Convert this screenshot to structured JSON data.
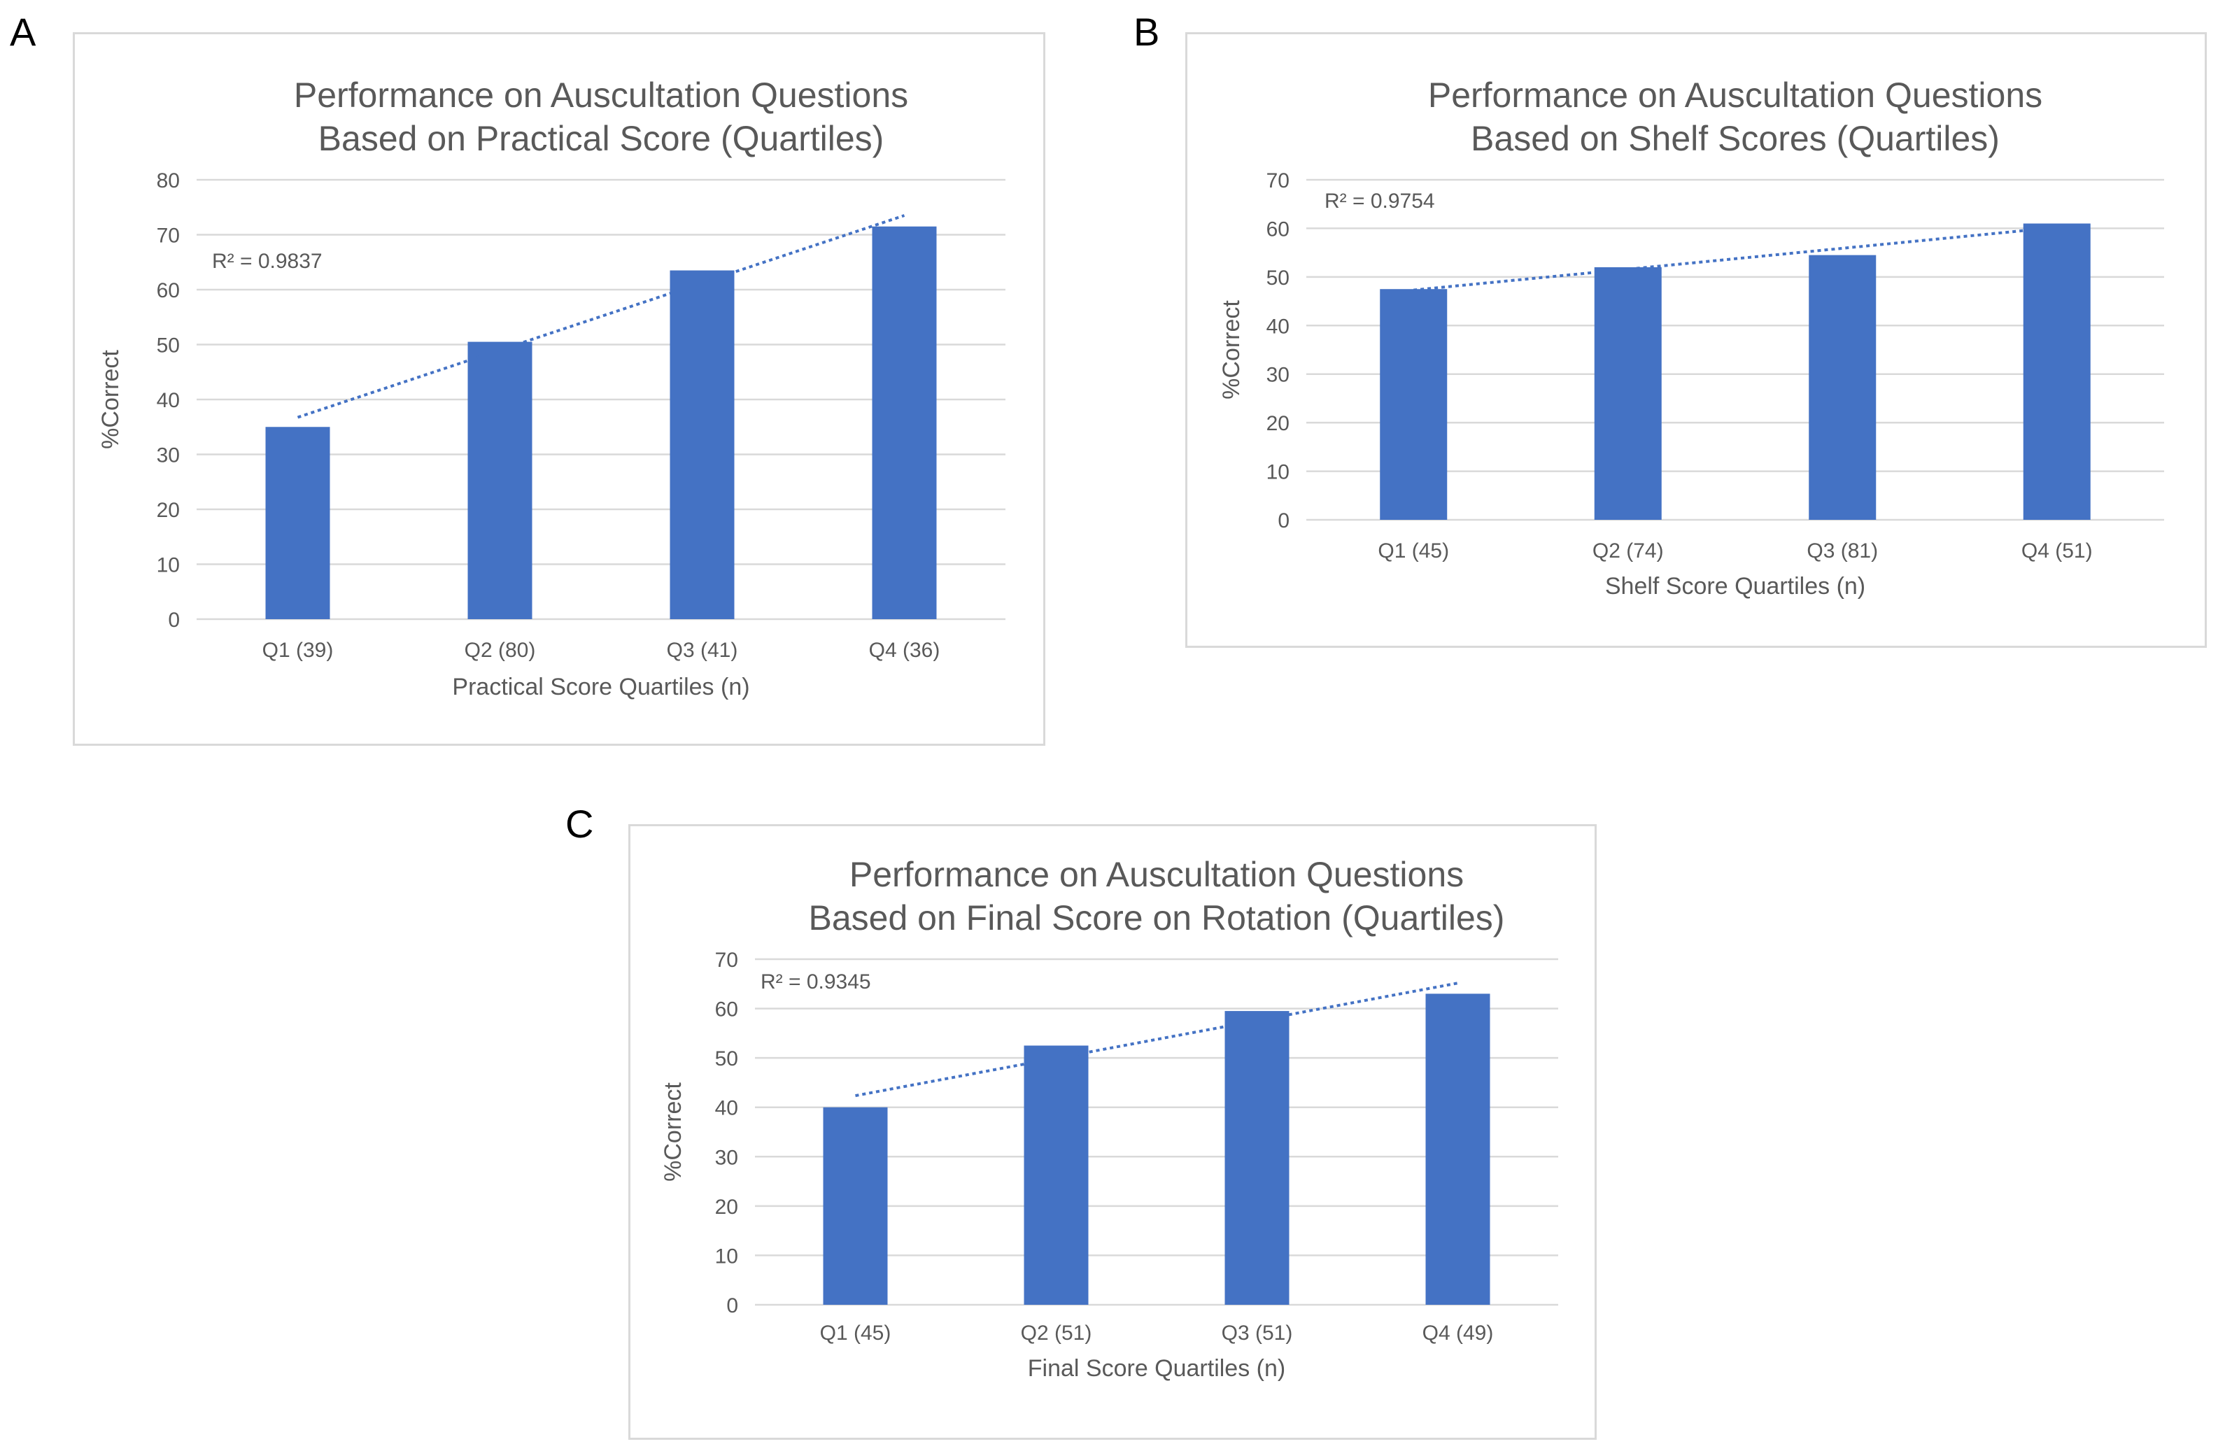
{
  "panels": [
    {
      "letter": "A"
    },
    {
      "letter": "B"
    },
    {
      "letter": "C"
    }
  ],
  "colors": {
    "bar": "#4472c4",
    "trend": "#4472c4",
    "grid": "#d9d9d9",
    "title": "#595959",
    "tick": "#595959",
    "border": "#d9d9d9"
  },
  "chart_data": [
    {
      "type": "bar",
      "title": "Performance on Auscultation Questions Based on Practical Score (Quartiles)",
      "title_lines": [
        "Performance on Auscultation Questions",
        "Based on Practical Score (Quartiles)"
      ],
      "categories": [
        "Q1 (39)",
        "Q2 (80)",
        "Q3 (41)",
        "Q4 (36)"
      ],
      "values": [
        35,
        50.5,
        63.5,
        71.5
      ],
      "xlabel": "Practical Score Quartiles (n)",
      "ylabel": "%Correct",
      "ylim": [
        0,
        80
      ],
      "yticks": [
        0,
        10,
        20,
        30,
        40,
        50,
        60,
        70,
        80
      ],
      "grid": true,
      "trendline": {
        "type": "linear",
        "label": "R² = 0.9837"
      }
    },
    {
      "type": "bar",
      "title": "Performance on Auscultation Questions Based on Shelf Scores (Quartiles)",
      "title_lines": [
        "Performance on Auscultation Questions",
        "Based on Shelf Scores (Quartiles)"
      ],
      "categories": [
        "Q1 (45)",
        "Q2 (74)",
        "Q3 (81)",
        "Q4 (51)"
      ],
      "values": [
        47.5,
        52,
        54.5,
        61
      ],
      "xlabel": "Shelf Score Quartiles (n)",
      "ylabel": "%Correct",
      "ylim": [
        0,
        70
      ],
      "yticks": [
        0,
        10,
        20,
        30,
        40,
        50,
        60,
        70
      ],
      "grid": true,
      "trendline": {
        "type": "linear",
        "label": "R² = 0.9754"
      }
    },
    {
      "type": "bar",
      "title": "Performance on Auscultation Questions Based on Final Score on Rotation (Quartiles)",
      "title_lines": [
        "Performance on Auscultation Questions",
        "Based on Final Score on Rotation (Quartiles)"
      ],
      "categories": [
        "Q1 (45)",
        "Q2 (51)",
        "Q3 (51)",
        "Q4 (49)"
      ],
      "values": [
        40,
        52.5,
        59.5,
        63
      ],
      "xlabel": "Final Score Quartiles (n)",
      "ylabel": "%Correct",
      "ylim": [
        0,
        70
      ],
      "yticks": [
        0,
        10,
        20,
        30,
        40,
        50,
        60,
        70
      ],
      "grid": true,
      "trendline": {
        "type": "linear",
        "label": "R² = 0.9345"
      }
    }
  ]
}
